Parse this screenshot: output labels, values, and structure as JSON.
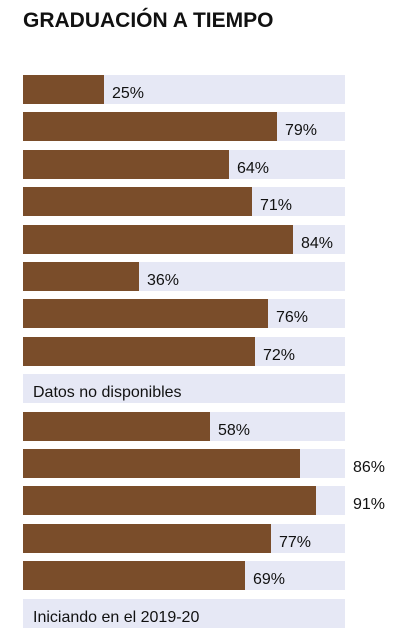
{
  "chart_data": {
    "type": "bar",
    "orientation": "horizontal",
    "title": "GRADUACIÓN A TIEMPO",
    "xlim": [
      0,
      100
    ],
    "value_suffix": "%",
    "colors": {
      "bar": "#7a4d2a",
      "track": "#e6e8f5"
    },
    "rows": [
      {
        "value": 25,
        "label": "25%"
      },
      {
        "value": 79,
        "label": "79%"
      },
      {
        "value": 64,
        "label": "64%"
      },
      {
        "value": 71,
        "label": "71%"
      },
      {
        "value": 84,
        "label": "84%"
      },
      {
        "value": 36,
        "label": "36%"
      },
      {
        "value": 76,
        "label": "76%"
      },
      {
        "value": 72,
        "label": "72%"
      },
      {
        "value": null,
        "label": "",
        "note": "Datos no disponibles"
      },
      {
        "value": 58,
        "label": "58%"
      },
      {
        "value": 86,
        "label": "86%"
      },
      {
        "value": 91,
        "label": "91%"
      },
      {
        "value": 77,
        "label": "77%"
      },
      {
        "value": 69,
        "label": "69%"
      },
      {
        "value": null,
        "label": "",
        "note": "Iniciando en el 2019-20"
      }
    ]
  }
}
